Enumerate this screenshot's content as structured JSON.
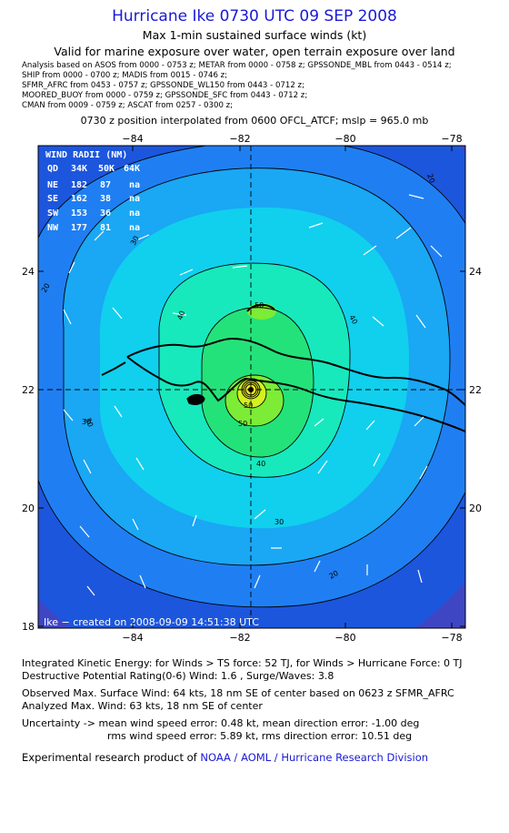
{
  "header": {
    "title": "Hurricane Ike 0730 UTC 09 SEP 2008",
    "subtitle": "Max 1-min sustained surface winds (kt)",
    "valid": "Valid for marine exposure over water, open terrain exposure over land",
    "analysis_lines": [
      "Analysis based on  ASOS from 0000 - 0753 z;  METAR from 0000 - 0758 z;  GPSSONDE_MBL from 0443 - 0514 z;",
      "SHIP from 0000 - 0700 z;  MADIS from 0015 - 0746 z;",
      "SFMR_AFRC from 0453 - 0757 z;  GPSSONDE_WL150 from 0443 - 0712 z;",
      "MOORED_BUOY from 0000 - 0759 z;  GPSSONDE_SFC from 0443 - 0712 z;",
      "CMAN from 0009 - 0759 z;  ASCAT from 0257 - 0300 z;"
    ],
    "position_note": "0730 z position interpolated from 0600 OFCL_ATCF; mslp = 965.0 mb"
  },
  "map": {
    "lon_ticks": [
      "−84",
      "−82",
      "−80",
      "−78"
    ],
    "lat_ticks": [
      "24",
      "22",
      "20",
      "18"
    ],
    "credit": "Ike − created on 2008-09-09 14:51:38 UTC",
    "contour_labels": [
      "20",
      "20",
      "30",
      "30",
      "30",
      "40",
      "40",
      "50",
      "50",
      "50",
      "40",
      "30",
      "20"
    ],
    "wind_radii": {
      "title": "WIND RADII (NM)",
      "header": [
        "QD",
        "34K",
        "50K",
        "64K"
      ],
      "rows": [
        [
          "NE",
          "182",
          "87",
          "na"
        ],
        [
          "SE",
          "162",
          "38",
          "na"
        ],
        [
          "SW",
          "153",
          "36",
          "na"
        ],
        [
          "NW",
          "177",
          "81",
          "na"
        ]
      ]
    },
    "colors": {
      "ring0": "#3f46c4",
      "ring1": "#1c56dd",
      "ring2": "#1f7ff2",
      "ring3": "#1aa7f4",
      "ring4": "#10d0ee",
      "ring5": "#17e9bd",
      "ring6": "#24e27a",
      "ring7": "#7cec36",
      "ring8": "#d4f01e",
      "ring9": "#f0e41e",
      "land": "#000000"
    }
  },
  "footer": {
    "ike": "Integrated Kinetic Energy:  for Winds > TS force: 52 TJ,  for Winds > Hurricane Force: 0 TJ",
    "dpr": "Destructive Potential Rating(0-6)   Wind: 1.6 , Surge/Waves: 3.8",
    "obs_max": "Observed Max. Surface Wind: 64 kts, 18 nm SE of center based on 0623 z SFMR_AFRC",
    "ana_max": "Analyzed Max. Wind: 63 kts, 18 nm SE of center",
    "unc1": "Uncertainty -> mean wind speed error: 0.48 kt,   mean direction error:  -1.00 deg",
    "unc2": "rms wind speed error: 5.89 kt,   rms direction error: 10.51 deg",
    "credit_prefix": "Experimental research product of ",
    "credit_org": "NOAA / AOML / Hurricane Research Division"
  }
}
